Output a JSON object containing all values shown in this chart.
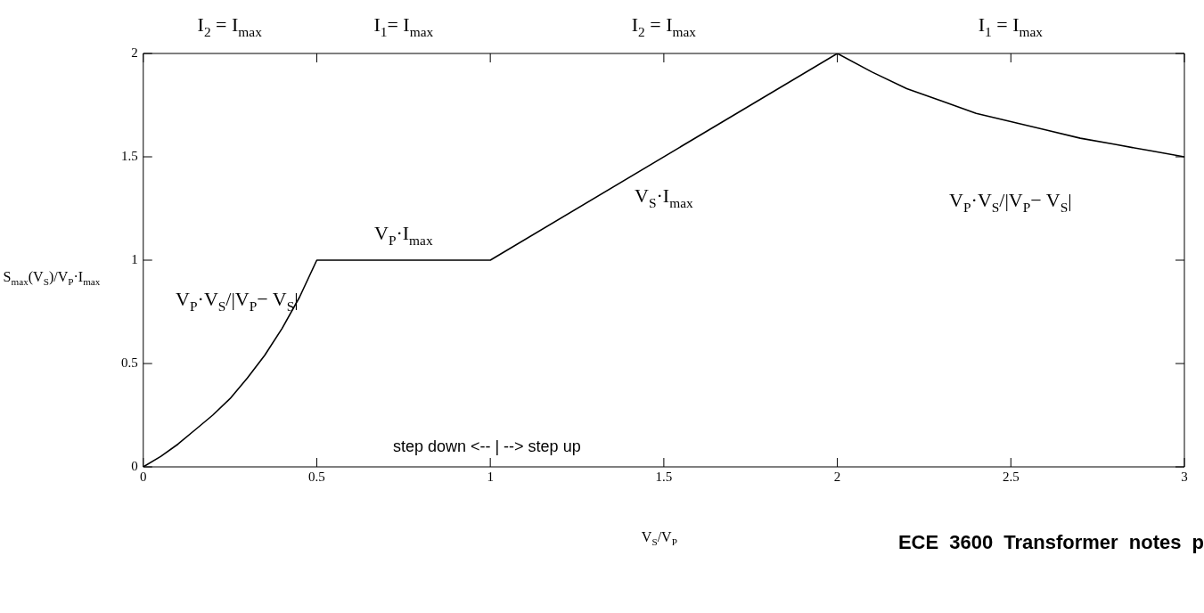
{
  "chart_data": {
    "type": "line",
    "x": [
      0,
      0.05,
      0.1,
      0.15,
      0.2,
      0.25,
      0.3,
      0.35,
      0.4,
      0.45,
      0.5,
      1,
      2,
      2.1,
      2.2,
      2.3,
      2.4,
      2.5,
      2.6,
      2.7,
      2.8,
      2.9,
      3
    ],
    "series": [
      {
        "color": "#000000",
        "values": [
          0,
          0.05,
          0.11,
          0.18,
          0.25,
          0.33,
          0.43,
          0.54,
          0.67,
          0.82,
          1,
          1,
          2,
          1.91,
          1.83,
          1.77,
          1.71,
          1.67,
          1.63,
          1.59,
          1.56,
          1.53,
          1.5
        ]
      }
    ],
    "xlim": [
      0,
      3
    ],
    "xticks": [
      0,
      0.5,
      1,
      1.5,
      2,
      2.5,
      3
    ],
    "ylim": [
      0,
      2
    ],
    "yticks": [
      0,
      0.5,
      1,
      1.5,
      2
    ],
    "xlabel": "V$_{S}$/V$_{P}$",
    "ylabel": "S$_{max}$(V$_{S}$)/V$_{P}$·I$_{max}$",
    "marker": "none",
    "annotations": [
      "I$_{2}$ = I$_{max}$",
      "I$_{1}$= I$_{max}$",
      "I$_{2}$ = I$_{max}$",
      "I$_{1}$ = I$_{max}$",
      "V$_{P}$·V$_{S}$/|V$_{P}$− V$_{S}$|",
      "V$_{P}$·I$_{max}$",
      "V$_{S}$·I$_{max}$",
      "V$_{P}$·V$_{S}$/|V$_{P}$− V$_{S}$|",
      "step down <-- | --> step up",
      "ECE 3600    Transformer  notes  p"
    ]
  }
}
